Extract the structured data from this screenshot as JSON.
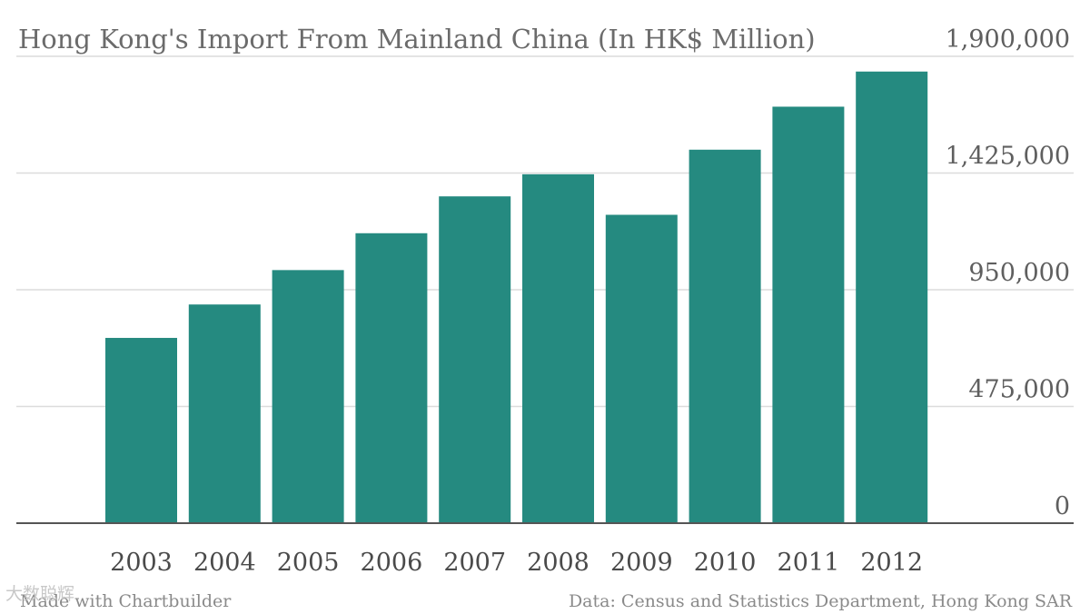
{
  "chart_data": {
    "type": "bar",
    "title": "Hong Kong's Import From Mainland China (In HK$ Million)",
    "categories": [
      "2003",
      "2004",
      "2005",
      "2006",
      "2007",
      "2008",
      "2009",
      "2010",
      "2011",
      "2012"
    ],
    "values": [
      754000,
      890000,
      1030000,
      1180000,
      1330000,
      1420000,
      1255000,
      1520000,
      1695000,
      1838000
    ],
    "ylim": [
      0,
      1900000
    ],
    "yticks": [
      0,
      475000,
      950000,
      1425000,
      1900000
    ],
    "ytick_labels": [
      "0",
      "475,000",
      "950,000",
      "1,425,000",
      "1,900,000"
    ],
    "y_axis_side": "right",
    "grid": true,
    "bar_color": "#258a80"
  },
  "footer": {
    "made_with": "Made with Chartbuilder",
    "source": "Data: Census and Statistics Department, Hong Kong SAR"
  },
  "watermark": {
    "text": "大数聪辉"
  }
}
